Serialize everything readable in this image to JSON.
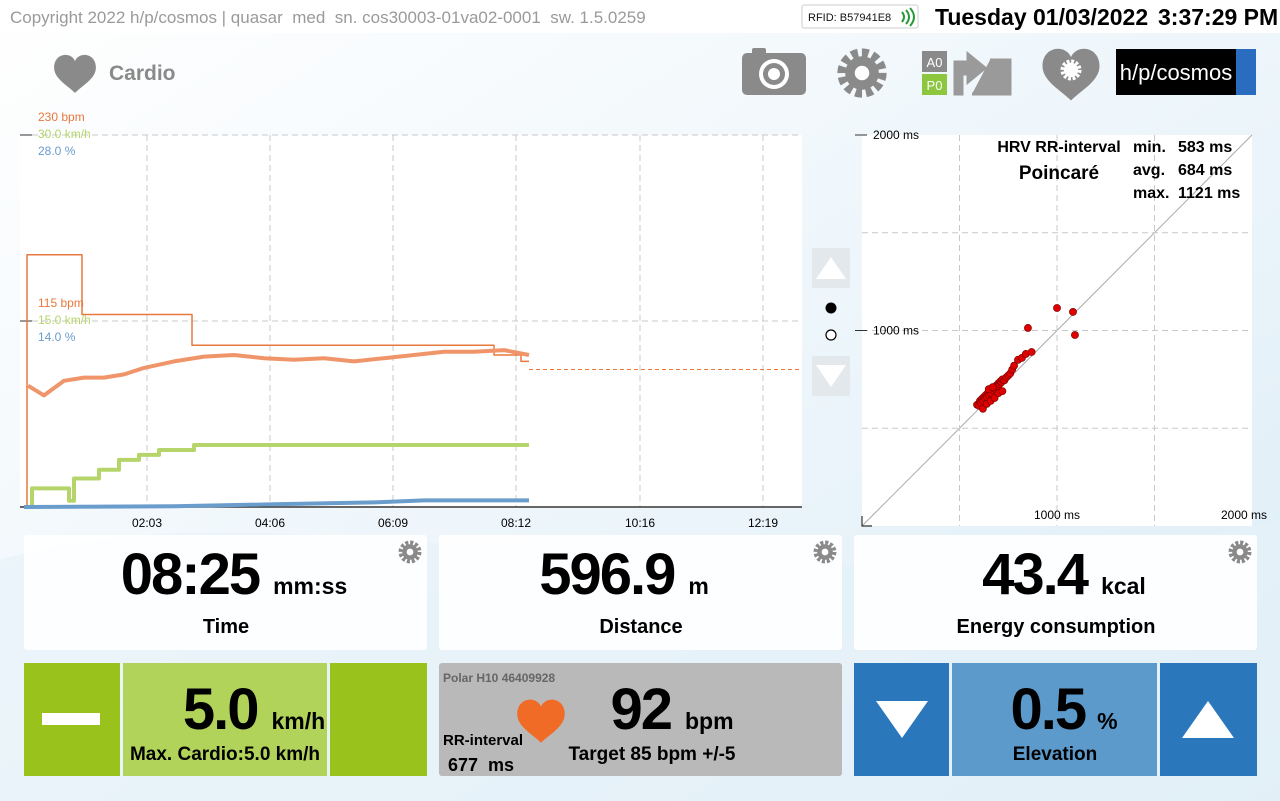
{
  "header": {
    "copyright": "Copyright 2022 h/p/cosmos | quasar  med  sn. cos30003-01va02-0001  sw. 1.5.0259",
    "rfid": "RFID: B57941E8",
    "day": "Tuesday",
    "date": "01/03/2022",
    "time": "3:37:29 PM"
  },
  "toolbar": {
    "mode": "Cardio",
    "a0": "A0",
    "p0": "P0",
    "brand": "h/p/cosmos"
  },
  "chart_data": [
    {
      "type": "line",
      "xlim": [
        0,
        780
      ],
      "xticks": [
        {
          "value": 123,
          "label": "02:03"
        },
        {
          "value": 246,
          "label": "04:06"
        },
        {
          "value": 369,
          "label": "06:09"
        },
        {
          "value": 492,
          "label": "08:12"
        },
        {
          "value": 616,
          "label": "10:16"
        },
        {
          "value": 739,
          "label": "12:19"
        }
      ],
      "ylim": [
        0,
        230
      ],
      "yticks": [
        {
          "value": 115,
          "label": "115 bpm"
        },
        {
          "value": 230,
          "label": "230 bpm"
        }
      ],
      "y2lim": [
        0,
        30
      ],
      "y2ticks": [
        {
          "value": 15,
          "label": "15.0 km/h"
        },
        {
          "value": 30,
          "label": "30.0 km/h"
        }
      ],
      "y3lim": [
        0,
        28
      ],
      "y3ticks": [
        {
          "value": 14,
          "label": "14.0 %"
        },
        {
          "value": 28,
          "label": "28.0 %"
        }
      ],
      "grid": true,
      "series": [
        {
          "color": "#e8783c",
          "style": "thin",
          "axis": "y",
          "x": [
            3,
            3,
            58,
            58,
            168,
            168,
            470,
            470,
            497,
            497,
            505
          ],
          "values": [
            0,
            156,
            156,
            119,
            119,
            100,
            100,
            94,
            94,
            90,
            90
          ]
        },
        {
          "color": "#e8783c",
          "style": "dashed",
          "axis": "y",
          "x": [
            505,
            776
          ],
          "values": [
            85,
            85
          ]
        },
        {
          "color": "#f0956a",
          "style": "thick",
          "axis": "y",
          "x": [
            4,
            20,
            40,
            60,
            80,
            100,
            120,
            150,
            180,
            210,
            240,
            270,
            300,
            330,
            360,
            390,
            420,
            450,
            480,
            505
          ],
          "values": [
            75,
            69,
            78,
            80,
            80,
            82,
            86,
            90,
            93,
            94,
            92,
            91,
            92,
            90,
            92,
            94,
            96,
            96,
            97,
            94
          ]
        },
        {
          "color": "#b5d56a",
          "style": "thick",
          "axis": "y2",
          "x": [
            3,
            8,
            8,
            45,
            45,
            50,
            50,
            75,
            75,
            95,
            95,
            115,
            115,
            135,
            135,
            170,
            170,
            505
          ],
          "values": [
            0,
            0,
            1.5,
            1.5,
            0.5,
            0.5,
            2.3,
            2.3,
            3.0,
            3.0,
            3.8,
            3.8,
            4.2,
            4.2,
            4.6,
            4.6,
            5.0,
            5.0
          ]
        },
        {
          "color": "#6a9ccc",
          "style": "thick",
          "axis": "y3",
          "x": [
            0,
            150,
            250,
            350,
            400,
            505
          ],
          "values": [
            0,
            0.05,
            0.2,
            0.35,
            0.5,
            0.5
          ]
        }
      ]
    },
    {
      "type": "scatter",
      "subtitle": "HRV RR-interval",
      "title": "Poincaré",
      "stats": [
        {
          "label": "min.",
          "value": "583 ms"
        },
        {
          "label": "avg.",
          "value": "684 ms"
        },
        {
          "label": "max.",
          "value": "1121 ms"
        }
      ],
      "xlim": [
        0,
        2000
      ],
      "ylim": [
        0,
        2000
      ],
      "xticks": [
        {
          "value": 1000,
          "label": "1000 ms"
        },
        {
          "value": 2000,
          "label": "2000 ms"
        }
      ],
      "yticks": [
        {
          "value": 1000,
          "label": "1000 ms"
        },
        {
          "value": 2000,
          "label": "2000 ms"
        }
      ],
      "grid_values": [
        500,
        1000,
        1500
      ],
      "color": "#e00000",
      "x": [
        590,
        600,
        605,
        610,
        615,
        620,
        625,
        630,
        635,
        640,
        645,
        650,
        655,
        660,
        665,
        670,
        675,
        680,
        685,
        690,
        695,
        700,
        705,
        710,
        715,
        720,
        730,
        740,
        750,
        760,
        770,
        780,
        620,
        640,
        660,
        680,
        700,
        720,
        650,
        670,
        800,
        820,
        840,
        851,
        1000,
        1082,
        1092,
        870
      ],
      "values": [
        620,
        615,
        640,
        630,
        650,
        640,
        660,
        655,
        670,
        660,
        680,
        670,
        690,
        680,
        700,
        695,
        705,
        710,
        700,
        720,
        715,
        730,
        725,
        740,
        735,
        750,
        745,
        760,
        770,
        780,
        800,
        820,
        600,
        625,
        640,
        655,
        680,
        690,
        700,
        710,
        850,
        860,
        880,
        1013,
        1115,
        1095,
        977,
        890
      ]
    }
  ],
  "tiles": [
    {
      "value": "08:25",
      "unit": "mm:ss",
      "label": "Time"
    },
    {
      "value": "596.9",
      "unit": "m",
      "label": "Distance"
    },
    {
      "value": "43.4",
      "unit": "kcal",
      "label": "Energy consumption"
    }
  ],
  "speed": {
    "value": "5.0",
    "unit": "km/h",
    "label": "Max. Cardio:5.0 km/h"
  },
  "heart": {
    "sensor": "Polar H10 46409928",
    "rr_label": "RR-interval",
    "rr_value": "677  ms",
    "value": "92",
    "unit": "bpm",
    "target": "Target 85 bpm +/-5"
  },
  "elevation": {
    "value": "0.5",
    "unit": "%",
    "label": "Elevation"
  }
}
